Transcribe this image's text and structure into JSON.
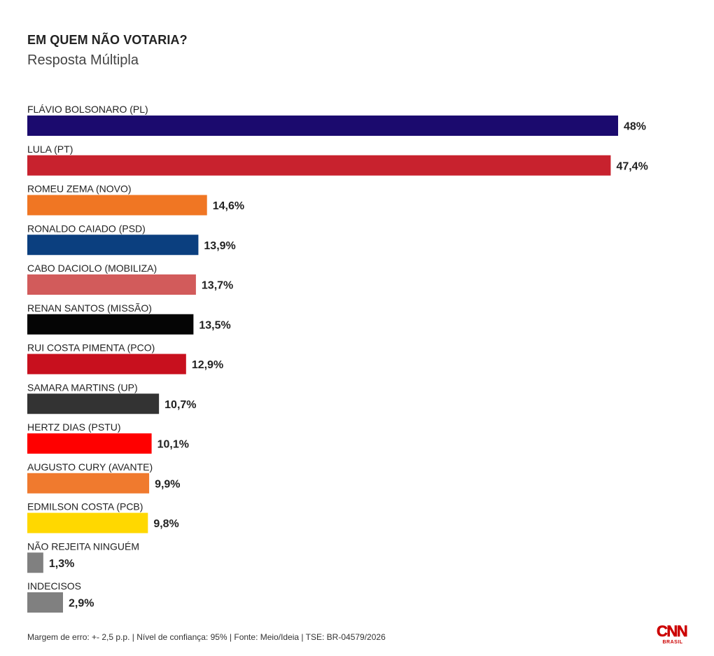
{
  "title": "EM QUEM NÃO VOTARIA?",
  "subtitle": "Resposta Múltipla",
  "footer": "Margem de erro: +- 2,5 p.p. | Nível de confiança: 95% | Fonte: Meio/Ideia | TSE: BR-04579/2026",
  "logo": {
    "main": "CNN",
    "sub": "BRASIL"
  },
  "chart_data": {
    "type": "bar",
    "orientation": "horizontal",
    "title": "EM QUEM NÃO VOTARIA?",
    "subtitle": "Resposta Múltipla",
    "xlim": [
      0,
      48
    ],
    "grid": false,
    "categories": [
      "FLÁVIO BOLSONARO (PL)",
      "LULA (PT)",
      "ROMEU ZEMA (NOVO)",
      "RONALDO CAIADO (PSD)",
      "CABO DACIOLO (MOBILIZA)",
      "RENAN SANTOS (MISSÃO)",
      "RUI COSTA PIMENTA (PCO)",
      "SAMARA MARTINS (UP)",
      "HERTZ DIAS (PSTU)",
      "AUGUSTO CURY (AVANTE)",
      "EDMILSON COSTA (PCB)",
      "NÃO REJEITA NINGUÉM",
      "INDECISOS"
    ],
    "values": [
      48,
      47.4,
      14.6,
      13.9,
      13.7,
      13.5,
      12.9,
      10.7,
      10.1,
      9.9,
      9.8,
      1.3,
      2.9
    ],
    "value_labels": [
      "48%",
      "47,4%",
      "14,6%",
      "13,9%",
      "13,7%",
      "13,5%",
      "12,9%",
      "10,7%",
      "10,1%",
      "9,9%",
      "9,8%",
      "1,3%",
      "2,9%"
    ],
    "colors": [
      "#1b0a6e",
      "#c8222e",
      "#f07623",
      "#0b3f7f",
      "#d25b5b",
      "#050505",
      "#c8101e",
      "#333333",
      "#ff0000",
      "#f07a2e",
      "#ffd800",
      "#808080",
      "#808080"
    ]
  }
}
